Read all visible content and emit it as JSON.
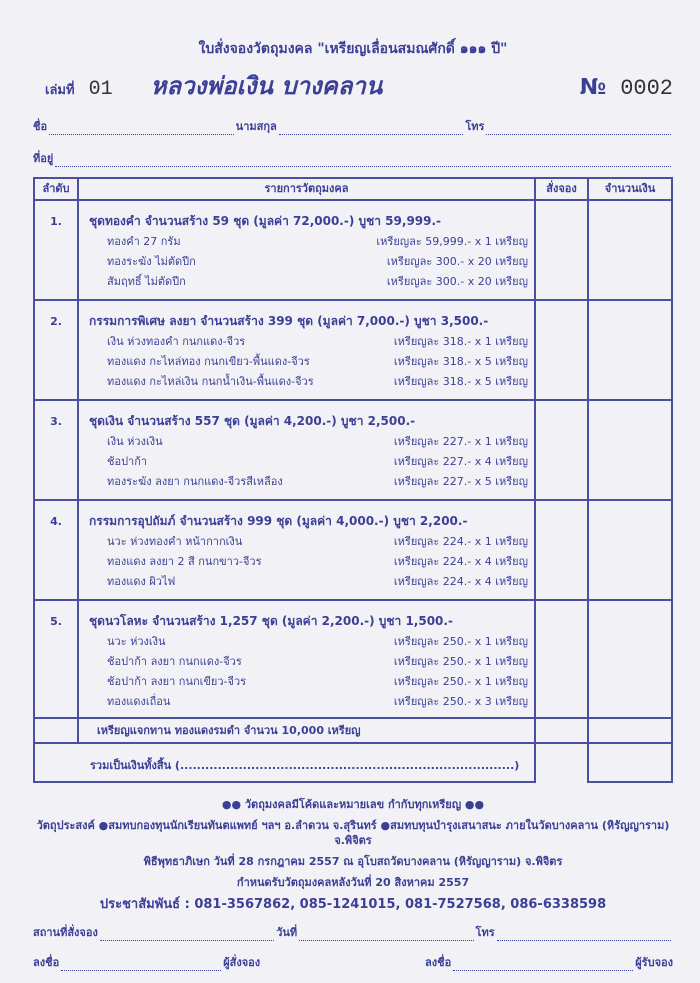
{
  "header": {
    "title": "ใบสั่งจองวัตถุมงคล \"เหรียญเลื่อนสมณศักดิ์ ๑๑๑ ปี\"",
    "book_label": "เล่มที่",
    "book_no": "01",
    "temple": "หลวงพ่อเงิน บางคลาน",
    "no_label": "№",
    "form_no": "0002"
  },
  "fields": {
    "name": "ชื่อ",
    "surname": "นามสกุล",
    "phone": "โทร",
    "address": "ที่อยู่"
  },
  "table": {
    "headers": [
      "ลำดับ",
      "รายการวัตถุมงคล",
      "สั่งจอง",
      "จำนวนเงิน"
    ],
    "sections": [
      {
        "no": "1.",
        "title": "ชุดทองคำ จำนวนสร้าง 59 ชุด (มูลค่า 72,000.-) บูชา 59,999.-",
        "items": [
          [
            "ทองคำ 27 กรัม",
            "เหรียญละ 59,999.- x 1 เหรียญ"
          ],
          [
            "ทองระฆัง ไม่ตัดปีก",
            "เหรียญละ 300.- x 20 เหรียญ"
          ],
          [
            "สัมฤทธิ์ ไม่ตัดปีก",
            "เหรียญละ 300.- x 20 เหรียญ"
          ]
        ]
      },
      {
        "no": "2.",
        "title": "กรรมการพิเศษ ลงยา จำนวนสร้าง 399 ชุด (มูลค่า 7,000.-) บูชา 3,500.-",
        "items": [
          [
            "เงิน ห่วงทองคำ กนกแดง-จีวร",
            "เหรียญละ 318.- x 1 เหรียญ"
          ],
          [
            "ทองแดง กะไหล่ทอง กนกเขียว-พื้นแดง-จีวร",
            "เหรียญละ 318.- x 5 เหรียญ"
          ],
          [
            "ทองแดง กะไหล่เงิน กนกน้ำเงิน-พื้นแดง-จีวร",
            "เหรียญละ 318.- x 5 เหรียญ"
          ]
        ]
      },
      {
        "no": "3.",
        "title": "ชุดเงิน จำนวนสร้าง 557 ชุด (มูลค่า 4,200.-) บูชา 2,500.-",
        "items": [
          [
            "เงิน ห่วงเงิน",
            "เหรียญละ 227.- x 1 เหรียญ"
          ],
          [
            "ช้อปาก้า",
            "เหรียญละ 227.- x 4 เหรียญ"
          ],
          [
            "ทองระฆัง ลงยา กนกแดง-จีวรสีเหลือง",
            "เหรียญละ 227.- x 5 เหรียญ"
          ]
        ]
      },
      {
        "no": "4.",
        "title": "กรรมการอุปถัมภ์ จำนวนสร้าง 999 ชุด (มูลค่า 4,000.-) บูชา 2,200.-",
        "items": [
          [
            "นวะ ห่วงทองคำ หน้ากากเงิน",
            "เหรียญละ 224.- x 1 เหรียญ"
          ],
          [
            "ทองแดง ลงยา 2 สี กนกขาว-จีวร",
            "เหรียญละ 224.- x 4 เหรียญ"
          ],
          [
            "ทองแดง ผิวไฟ",
            "เหรียญละ 224.- x 4 เหรียญ"
          ]
        ]
      },
      {
        "no": "5.",
        "title": "ชุดนวโลหะ จำนวนสร้าง 1,257 ชุด (มูลค่า 2,200.-) บูชา 1,500.-",
        "items": [
          [
            "นวะ ห่วงเงิน",
            "เหรียญละ 250.- x 1 เหรียญ"
          ],
          [
            "ช้อปาก้า ลงยา กนกแดง-จีวร",
            "เหรียญละ 250.- x 1 เหรียญ"
          ],
          [
            "ช้อปาก้า ลงยา กนกเขียว-จีวร",
            "เหรียญละ 250.- x 1 เหรียญ"
          ],
          [
            "ทองแดงเถื่อน",
            "เหรียญละ 250.- x 3 เหรียญ"
          ]
        ]
      }
    ],
    "note": "เหรียญแจกทาน ทองแดงรมดำ จำนวน 10,000 เหรียญ",
    "total": "รวมเป็นเงินทั้งสิ้น (................................................................................)"
  },
  "footer": {
    "lines": [
      "●● วัตถุมงคลมีโค้ดและหมายเลข กำกับทุกเหรียญ ●●",
      "วัตถุประสงค์ ●สมทบกองทุนนักเรียนทันตแพทย์ ฯลฯ อ.ลำดวน จ.สุรินทร์ ●สมทบทุนบำรุงเสนาสนะ ภายในวัดบางคลาน (หิรัญญาราม) จ.พิจิตร",
      "พิธีพุทธาภิเษก วันที่ 28 กรกฎาคม 2557 ณ อุโบสถวัดบางคลาน (หิรัญญาราม) จ.พิจิตร",
      "กำหนดรับวัตถุมงคลหลังวันที่ 20 สิงหาคม 2557",
      "ประชาสัมพันธ์ : 081-3567862, 085-1241015, 081-7527568, 086-6338598"
    ],
    "place": "สถานที่สั่งจอง",
    "date": "วันที่",
    "phone": "โทร",
    "sign1": "ลงชื่อ",
    "orderer": "ผู้สั่งจอง",
    "sign2": "ลงชื่อ",
    "receiver": "ผู้รับจอง"
  }
}
